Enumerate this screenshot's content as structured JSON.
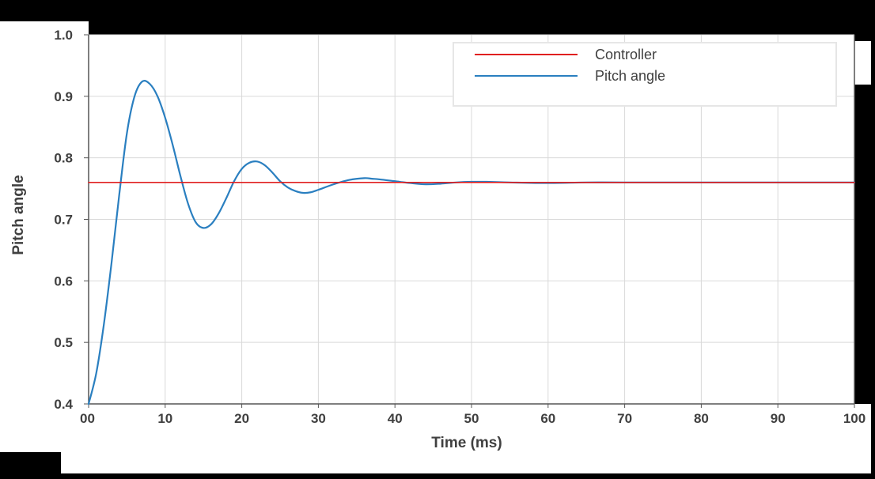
{
  "chart_data": {
    "type": "line",
    "title": "",
    "xlabel": "Time (ms)",
    "ylabel": "Pitch angle",
    "xlim": [
      0,
      100
    ],
    "ylim": [
      0.4,
      1.0
    ],
    "x_ticks": [
      0,
      10,
      20,
      30,
      40,
      50,
      60,
      70,
      80,
      90,
      100
    ],
    "x_tick_labels": [
      "00",
      "10",
      "20",
      "30",
      "40",
      "50",
      "60",
      "70",
      "80",
      "90",
      "100"
    ],
    "y_ticks": [
      0.4,
      0.5,
      0.6,
      0.7,
      0.8,
      0.9,
      1.0
    ],
    "y_tick_labels": [
      "0.4",
      "0.5",
      "0.6",
      "0.7",
      "0.8",
      "0.9",
      "1.0"
    ],
    "grid": true,
    "legend_position": "top-right",
    "series": [
      {
        "name": "Controller",
        "color": "#e02020",
        "x": [
          0,
          100
        ],
        "y": [
          0.76,
          0.76
        ]
      },
      {
        "name": "Pitch angle",
        "color": "#2a7fc0",
        "x": [
          0,
          1,
          2,
          3,
          4,
          5,
          6,
          7,
          8,
          9,
          10,
          11,
          12,
          13,
          14,
          15,
          16,
          17,
          18,
          19,
          20,
          21,
          22,
          23,
          24,
          25,
          26,
          27,
          28,
          29,
          30,
          32,
          34,
          36,
          37,
          38,
          40,
          42,
          44,
          46,
          48,
          50,
          52,
          55,
          60,
          65,
          70,
          80,
          90,
          100
        ],
        "y": [
          0.4,
          0.45,
          0.53,
          0.63,
          0.74,
          0.84,
          0.9,
          0.924,
          0.92,
          0.9,
          0.865,
          0.82,
          0.77,
          0.725,
          0.695,
          0.686,
          0.692,
          0.71,
          0.735,
          0.762,
          0.782,
          0.792,
          0.794,
          0.788,
          0.776,
          0.762,
          0.752,
          0.746,
          0.743,
          0.744,
          0.748,
          0.757,
          0.764,
          0.767,
          0.766,
          0.765,
          0.762,
          0.759,
          0.757,
          0.758,
          0.76,
          0.761,
          0.761,
          0.76,
          0.759,
          0.76,
          0.76,
          0.76,
          0.76,
          0.76
        ]
      }
    ]
  }
}
